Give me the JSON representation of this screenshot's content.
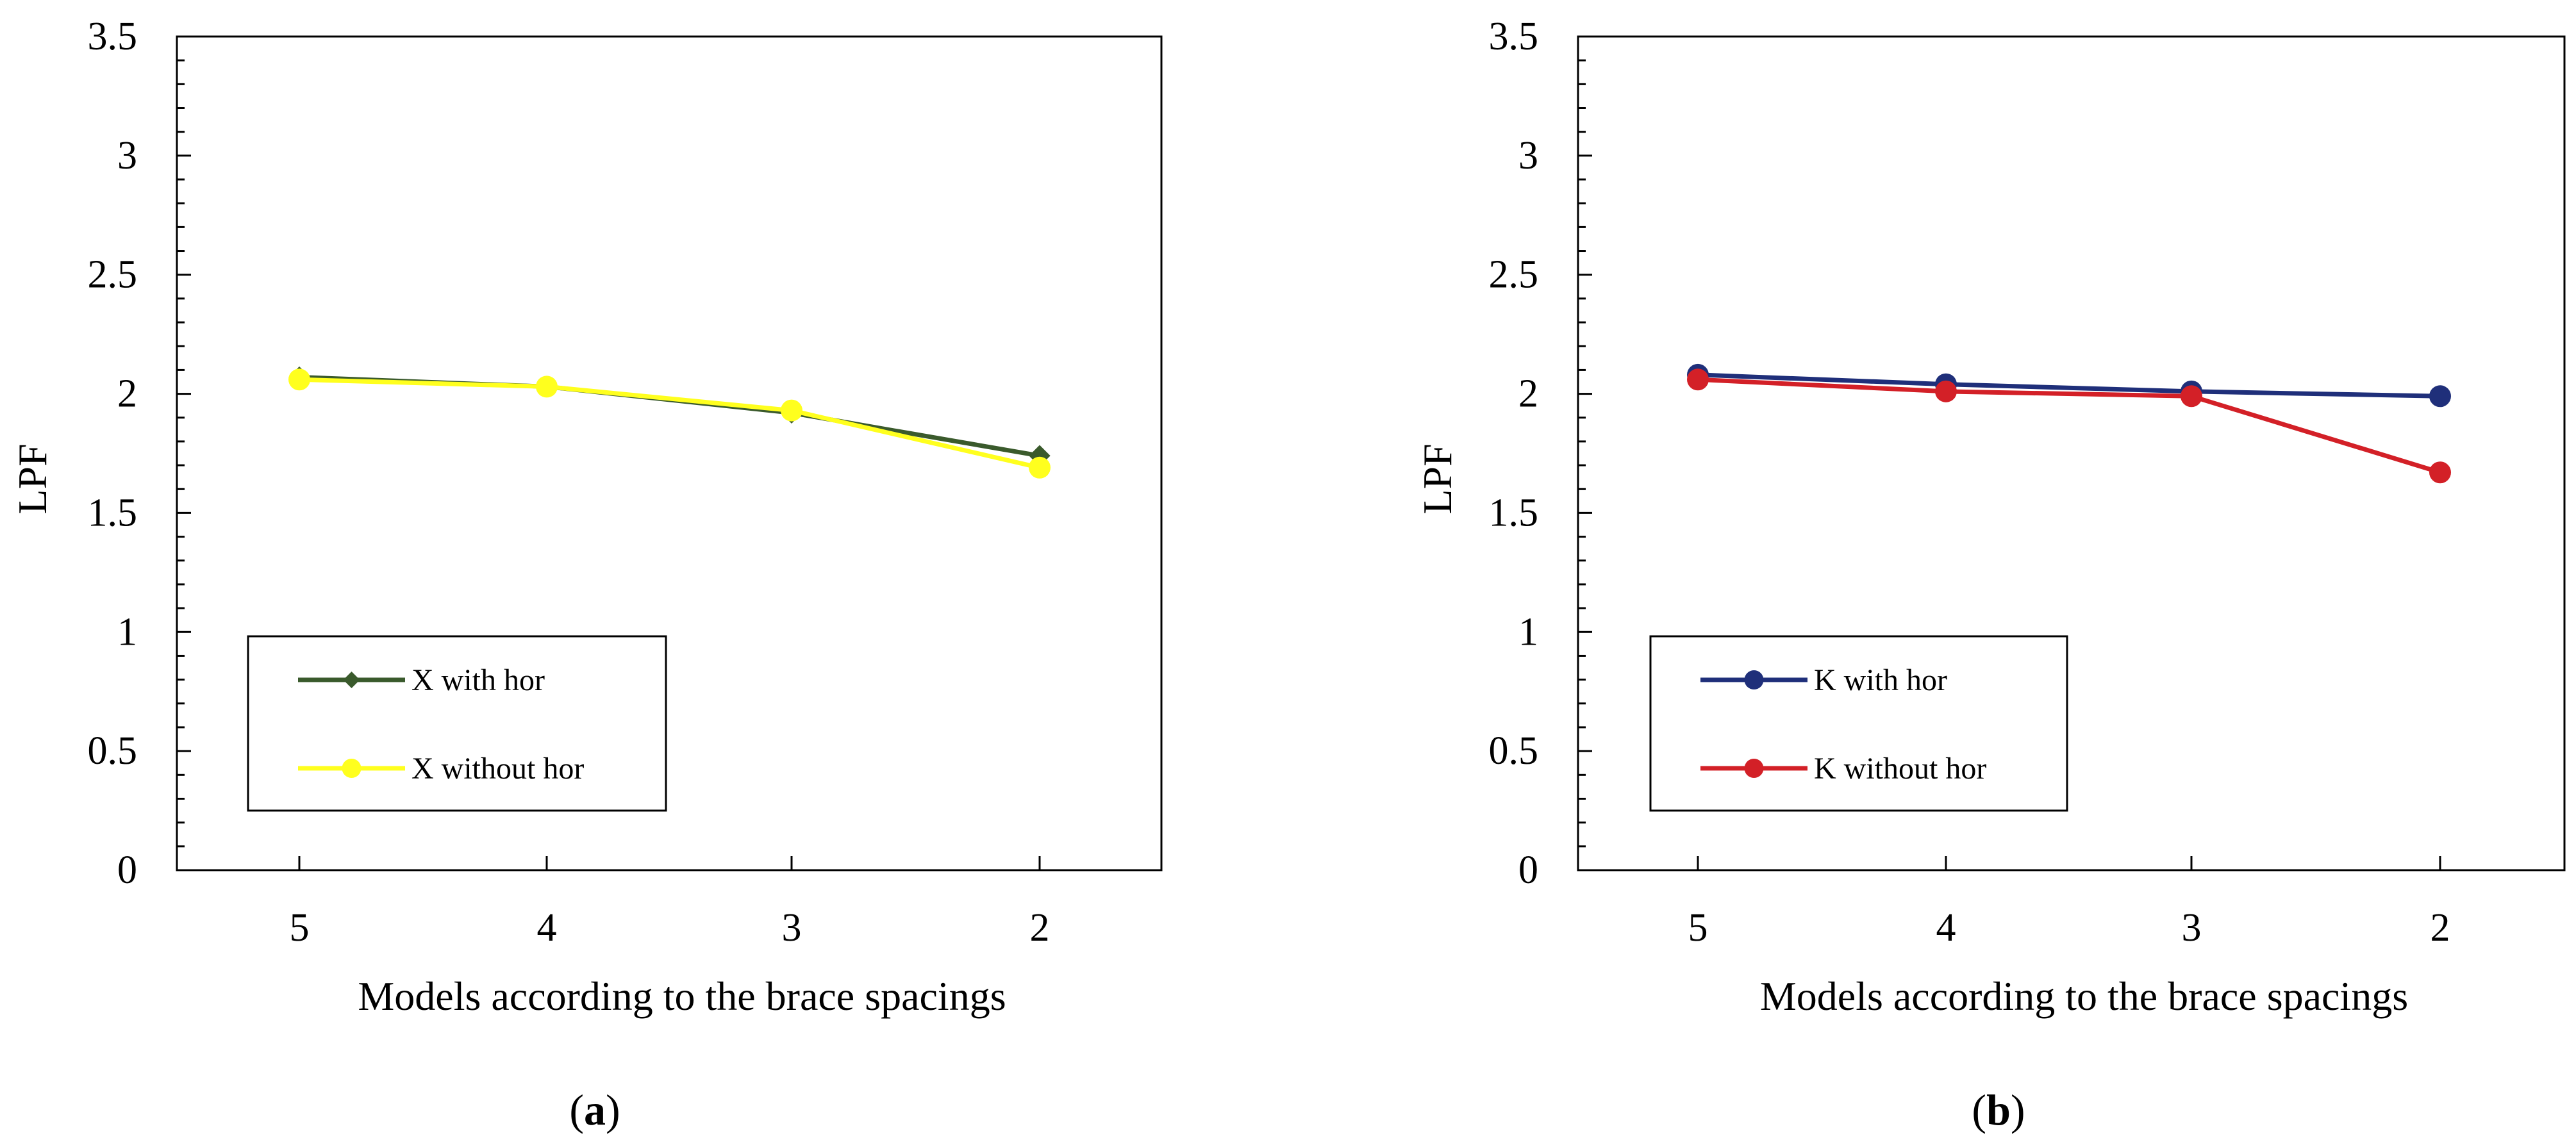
{
  "chart_data": [
    {
      "type": "line",
      "panel_label": "a",
      "categories": [
        "5",
        "4",
        "3",
        "2"
      ],
      "xlabel": "Models according to the brace spacings",
      "ylabel": "LPF",
      "ylim": [
        0,
        3.5
      ],
      "yticks": [
        "0",
        "0.5",
        "1",
        "1.5",
        "2",
        "2.5",
        "3",
        "3.5"
      ],
      "legend_position": "bottom-left",
      "series": [
        {
          "name": "X with hor",
          "values": [
            2.07,
            2.03,
            1.92,
            1.74
          ],
          "color": "#3a5a2c",
          "marker": "diamond"
        },
        {
          "name": "X without hor",
          "values": [
            2.06,
            2.03,
            1.93,
            1.69
          ],
          "color": "#ffff1e",
          "marker": "circle"
        }
      ]
    },
    {
      "type": "line",
      "panel_label": "b",
      "categories": [
        "5",
        "4",
        "3",
        "2"
      ],
      "xlabel": "Models according to the brace spacings",
      "ylabel": "LPF",
      "ylim": [
        0,
        3.5
      ],
      "yticks": [
        "0",
        "0.5",
        "1",
        "1.5",
        "2",
        "2.5",
        "3",
        "3.5"
      ],
      "legend_position": "bottom-left",
      "series": [
        {
          "name": "K with hor",
          "values": [
            2.08,
            2.04,
            2.01,
            1.99
          ],
          "color": "#1f2f7a",
          "marker": "circle"
        },
        {
          "name": "K without hor",
          "values": [
            2.06,
            2.01,
            1.99,
            1.67
          ],
          "color": "#d32027",
          "marker": "circle"
        }
      ]
    }
  ]
}
